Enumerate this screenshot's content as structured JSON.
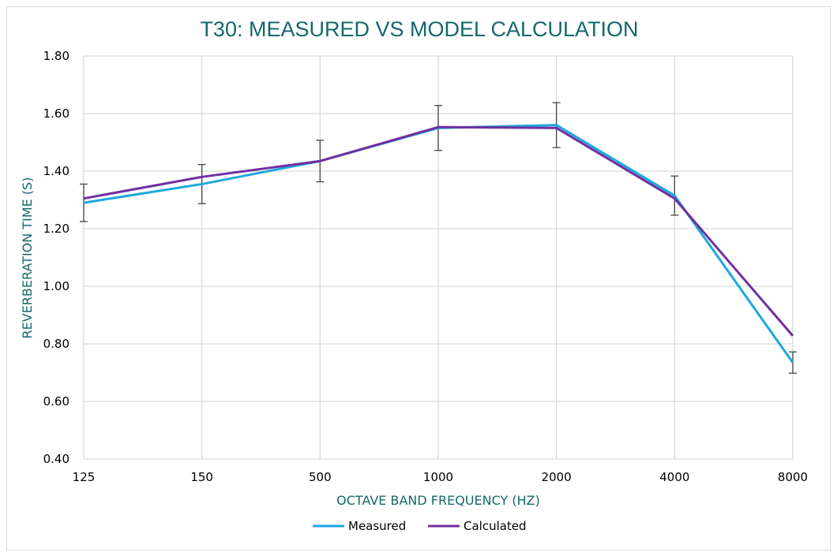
{
  "chart_data": {
    "type": "line",
    "title": "T30: MEASURED VS MODEL CALCULATION",
    "xlabel": "OCTAVE BAND FREQUENCY (HZ)",
    "ylabel": "REVERBERATION TIME (S)",
    "categories": [
      "125",
      "150",
      "500",
      "1000",
      "2000",
      "4000",
      "8000"
    ],
    "ylim": [
      0.4,
      1.8
    ],
    "yticks": [
      "0.40",
      "0.60",
      "0.80",
      "1.00",
      "1.20",
      "1.40",
      "1.60",
      "1.80"
    ],
    "grid": true,
    "legend_position": "bottom",
    "series": [
      {
        "name": "Measured",
        "color": "#1ea7df",
        "values": [
          1.29,
          1.355,
          1.435,
          1.55,
          1.56,
          1.315,
          0.735
        ],
        "error": [
          0.065,
          0.068,
          0.072,
          0.078,
          0.078,
          0.068,
          0.037
        ]
      },
      {
        "name": "Calculated",
        "color": "#7030a0",
        "values": [
          1.305,
          1.38,
          1.435,
          1.553,
          1.55,
          1.305,
          0.828
        ]
      }
    ]
  }
}
